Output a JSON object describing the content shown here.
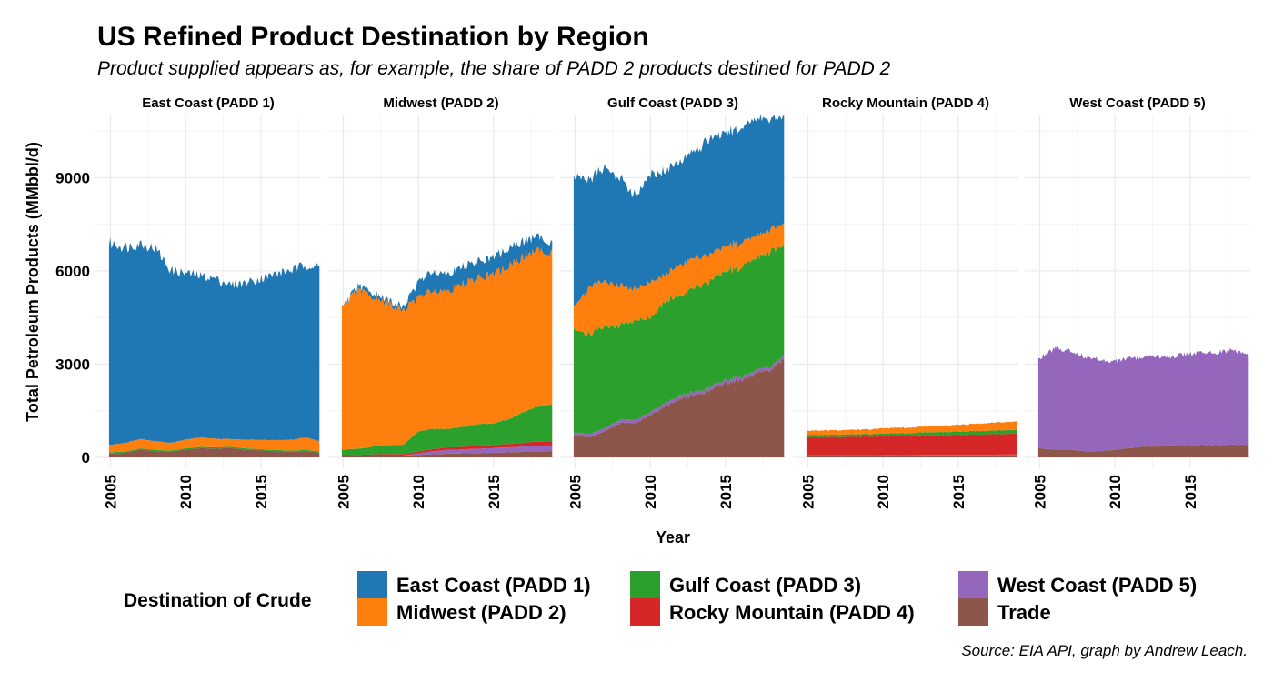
{
  "chart_data": {
    "type": "area",
    "title": "US Refined Product Destination by Region",
    "subtitle": "Product supplied appears as, for example, the share of PADD 2 products destined for PADD 2",
    "xlabel": "Year",
    "ylabel": "Total Petroleum Products (MMbbl/d)",
    "caption": "Source: EIA API, graph by Andrew Leach.",
    "xlim": [
      2004,
      2019
    ],
    "ylim": [
      0,
      11000
    ],
    "x_ticks": [
      2005,
      2010,
      2015
    ],
    "x_tick_labels": [
      "2005",
      "2010",
      "2015"
    ],
    "y_ticks": [
      0,
      3000,
      6000,
      9000
    ],
    "y_tick_labels": [
      "0",
      "3000",
      "6000",
      "9000"
    ],
    "stacked": true,
    "grid": true,
    "legend": {
      "title": "Destination of Crude",
      "position": "bottom",
      "entries": [
        {
          "name": "East Coast (PADD 1)",
          "color": "#1f77b4"
        },
        {
          "name": "Midwest (PADD 2)",
          "color": "#ff7f0e"
        },
        {
          "name": "Gulf Coast (PADD 3)",
          "color": "#2ca02c"
        },
        {
          "name": "Rocky Mountain (PADD 4)",
          "color": "#d62728"
        },
        {
          "name": "West Coast (PADD 5)",
          "color": "#9467bd"
        },
        {
          "name": "Trade",
          "color": "#8c564b"
        }
      ]
    },
    "stack_order_bottom_to_top": [
      "Trade",
      "West Coast (PADD 5)",
      "Rocky Mountain (PADD 4)",
      "Gulf Coast (PADD 3)",
      "Midwest (PADD 2)",
      "East Coast (PADD 1)"
    ],
    "panels": [
      {
        "title": "East Coast (PADD 1)",
        "x": [
          2004.9,
          2006,
          2007,
          2008,
          2009,
          2010,
          2011,
          2012,
          2013,
          2014,
          2015,
          2016,
          2017,
          2018,
          2018.9
        ],
        "series": [
          {
            "name": "Trade",
            "values": [
              120,
              150,
              250,
              200,
              180,
              250,
              300,
              280,
              300,
              250,
              220,
              200,
              180,
              200,
              150
            ]
          },
          {
            "name": "West Coast (PADD 5)",
            "values": [
              0,
              0,
              0,
              0,
              0,
              0,
              0,
              0,
              0,
              0,
              0,
              0,
              0,
              0,
              0
            ]
          },
          {
            "name": "Rocky Mountain (PADD 4)",
            "values": [
              0,
              0,
              0,
              0,
              0,
              0,
              0,
              0,
              0,
              0,
              0,
              0,
              0,
              0,
              0
            ]
          },
          {
            "name": "Gulf Coast (PADD 3)",
            "values": [
              40,
              40,
              40,
              40,
              40,
              40,
              40,
              40,
              40,
              40,
              40,
              40,
              40,
              40,
              40
            ]
          },
          {
            "name": "Midwest (PADD 2)",
            "values": [
              240,
              280,
              300,
              280,
              250,
              280,
              300,
              280,
              250,
              280,
              300,
              320,
              350,
              400,
              330
            ]
          },
          {
            "name": "East Coast (PADD 1)",
            "values": [
              6500,
              6300,
              6300,
              6200,
              5550,
              5350,
              5200,
              5150,
              4950,
              5050,
              5200,
              5350,
              5450,
              5560,
              5580
            ]
          }
        ]
      },
      {
        "title": "Midwest (PADD 2)",
        "x": [
          2004.9,
          2006,
          2007,
          2008,
          2009,
          2010,
          2011,
          2012,
          2013,
          2014,
          2015,
          2016,
          2017,
          2018,
          2018.9
        ],
        "series": [
          {
            "name": "Trade",
            "values": [
              50,
              50,
              60,
              60,
              60,
              80,
              100,
              120,
              130,
              140,
              150,
              160,
              180,
              200,
              200
            ]
          },
          {
            "name": "West Coast (PADD 5)",
            "values": [
              0,
              0,
              0,
              0,
              0,
              50,
              100,
              120,
              130,
              140,
              150,
              160,
              170,
              180,
              180
            ]
          },
          {
            "name": "Rocky Mountain (PADD 4)",
            "values": [
              20,
              30,
              40,
              50,
              50,
              60,
              70,
              80,
              80,
              90,
              100,
              110,
              120,
              130,
              130
            ]
          },
          {
            "name": "Gulf Coast (PADD 3)",
            "values": [
              180,
              200,
              250,
              280,
              300,
              650,
              650,
              600,
              650,
              700,
              700,
              800,
              1000,
              1150,
              1200
            ]
          },
          {
            "name": "Midwest (PADD 2)",
            "values": [
              4550,
              5100,
              4800,
              4550,
              4320,
              4300,
              4450,
              4450,
              4600,
              4700,
              4800,
              4900,
              5000,
              5000,
              4900
            ]
          },
          {
            "name": "East Coast (PADD 1)",
            "values": [
              0,
              120,
              150,
              100,
              110,
              500,
              620,
              550,
              560,
              530,
              550,
              580,
              500,
              450,
              300
            ]
          }
        ]
      },
      {
        "title": "Gulf Coast (PADD 3)",
        "x": [
          2004.9,
          2006,
          2007,
          2008,
          2009,
          2010,
          2011,
          2012,
          2013,
          2014,
          2015,
          2016,
          2017,
          2018,
          2018.9
        ],
        "series": [
          {
            "name": "Trade",
            "values": [
              700,
              650,
              850,
              1100,
              1100,
              1350,
              1650,
              1900,
              2000,
              2150,
              2400,
              2500,
              2650,
              2800,
              3200
            ]
          },
          {
            "name": "West Coast (PADD 5)",
            "values": [
              100,
              100,
              100,
              100,
              100,
              100,
              100,
              100,
              100,
              100,
              100,
              100,
              100,
              100,
              100
            ]
          },
          {
            "name": "Rocky Mountain (PADD 4)",
            "values": [
              0,
              0,
              0,
              0,
              0,
              0,
              0,
              0,
              0,
              0,
              0,
              0,
              0,
              0,
              0
            ]
          },
          {
            "name": "Gulf Coast (PADD 3)",
            "values": [
              3300,
              3250,
              3250,
              3050,
              3200,
              3050,
              3250,
              3200,
              3400,
              3400,
              3500,
              3500,
              3600,
              3750,
              3500
            ]
          },
          {
            "name": "Midwest (PADD 2)",
            "values": [
              700,
              1550,
              1450,
              1250,
              1000,
              1150,
              850,
              1000,
              950,
              850,
              800,
              800,
              700,
              700,
              700
            ]
          },
          {
            "name": "East Coast (PADD 1)",
            "values": [
              4200,
              3450,
              3650,
              3450,
              3000,
              3450,
              3350,
              3350,
              3450,
              3750,
              3600,
              3700,
              3800,
              3550,
              3400
            ]
          }
        ]
      },
      {
        "title": "Rocky Mountain (PADD 4)",
        "x": [
          2004.9,
          2006,
          2007,
          2008,
          2009,
          2010,
          2011,
          2012,
          2013,
          2014,
          2015,
          2016,
          2017,
          2018,
          2018.9
        ],
        "series": [
          {
            "name": "Trade",
            "values": [
              30,
              30,
              30,
              30,
              30,
              30,
              30,
              30,
              30,
              30,
              30,
              30,
              30,
              30,
              30
            ]
          },
          {
            "name": "West Coast (PADD 5)",
            "values": [
              40,
              40,
              40,
              40,
              40,
              45,
              45,
              45,
              50,
              50,
              50,
              55,
              55,
              60,
              60
            ]
          },
          {
            "name": "Rocky Mountain (PADD 4)",
            "values": [
              570,
              580,
              580,
              590,
              600,
              600,
              610,
              620,
              630,
              640,
              650,
              650,
              660,
              670,
              670
            ]
          },
          {
            "name": "Gulf Coast (PADD 3)",
            "values": [
              80,
              80,
              80,
              80,
              80,
              90,
              90,
              90,
              100,
              100,
              100,
              110,
              110,
              120,
              120
            ]
          },
          {
            "name": "Midwest (PADD 2)",
            "values": [
              130,
              140,
              140,
              150,
              150,
              170,
              180,
              180,
              190,
              200,
              220,
              230,
              250,
              260,
              270
            ]
          },
          {
            "name": "East Coast (PADD 1)",
            "values": [
              0,
              0,
              0,
              0,
              0,
              0,
              0,
              0,
              0,
              0,
              0,
              0,
              0,
              0,
              0
            ]
          }
        ]
      },
      {
        "title": "West Coast (PADD 5)",
        "x": [
          2004.9,
          2006,
          2007,
          2008,
          2009,
          2010,
          2011,
          2012,
          2013,
          2014,
          2015,
          2016,
          2017,
          2018,
          2018.9
        ],
        "series": [
          {
            "name": "Trade",
            "values": [
              300,
              250,
              250,
              200,
              200,
              250,
              300,
              350,
              350,
              400,
              400,
              400,
              400,
              420,
              400
            ]
          },
          {
            "name": "West Coast (PADD 5)",
            "values": [
              2900,
              3250,
              3200,
              3050,
              2950,
              2850,
              2900,
              2850,
              2900,
              2850,
              2950,
              2950,
              3000,
              3030,
              2900
            ]
          },
          {
            "name": "Rocky Mountain (PADD 4)",
            "values": [
              0,
              0,
              0,
              0,
              0,
              0,
              0,
              0,
              0,
              0,
              0,
              0,
              0,
              0,
              0
            ]
          },
          {
            "name": "Gulf Coast (PADD 3)",
            "values": [
              0,
              0,
              0,
              0,
              0,
              0,
              0,
              0,
              0,
              0,
              0,
              0,
              0,
              0,
              0
            ]
          },
          {
            "name": "Midwest (PADD 2)",
            "values": [
              0,
              0,
              0,
              0,
              0,
              0,
              0,
              0,
              0,
              0,
              0,
              0,
              0,
              0,
              0
            ]
          },
          {
            "name": "East Coast (PADD 1)",
            "values": [
              0,
              0,
              0,
              0,
              0,
              0,
              0,
              0,
              0,
              0,
              0,
              0,
              0,
              0,
              0
            ]
          }
        ]
      }
    ]
  }
}
